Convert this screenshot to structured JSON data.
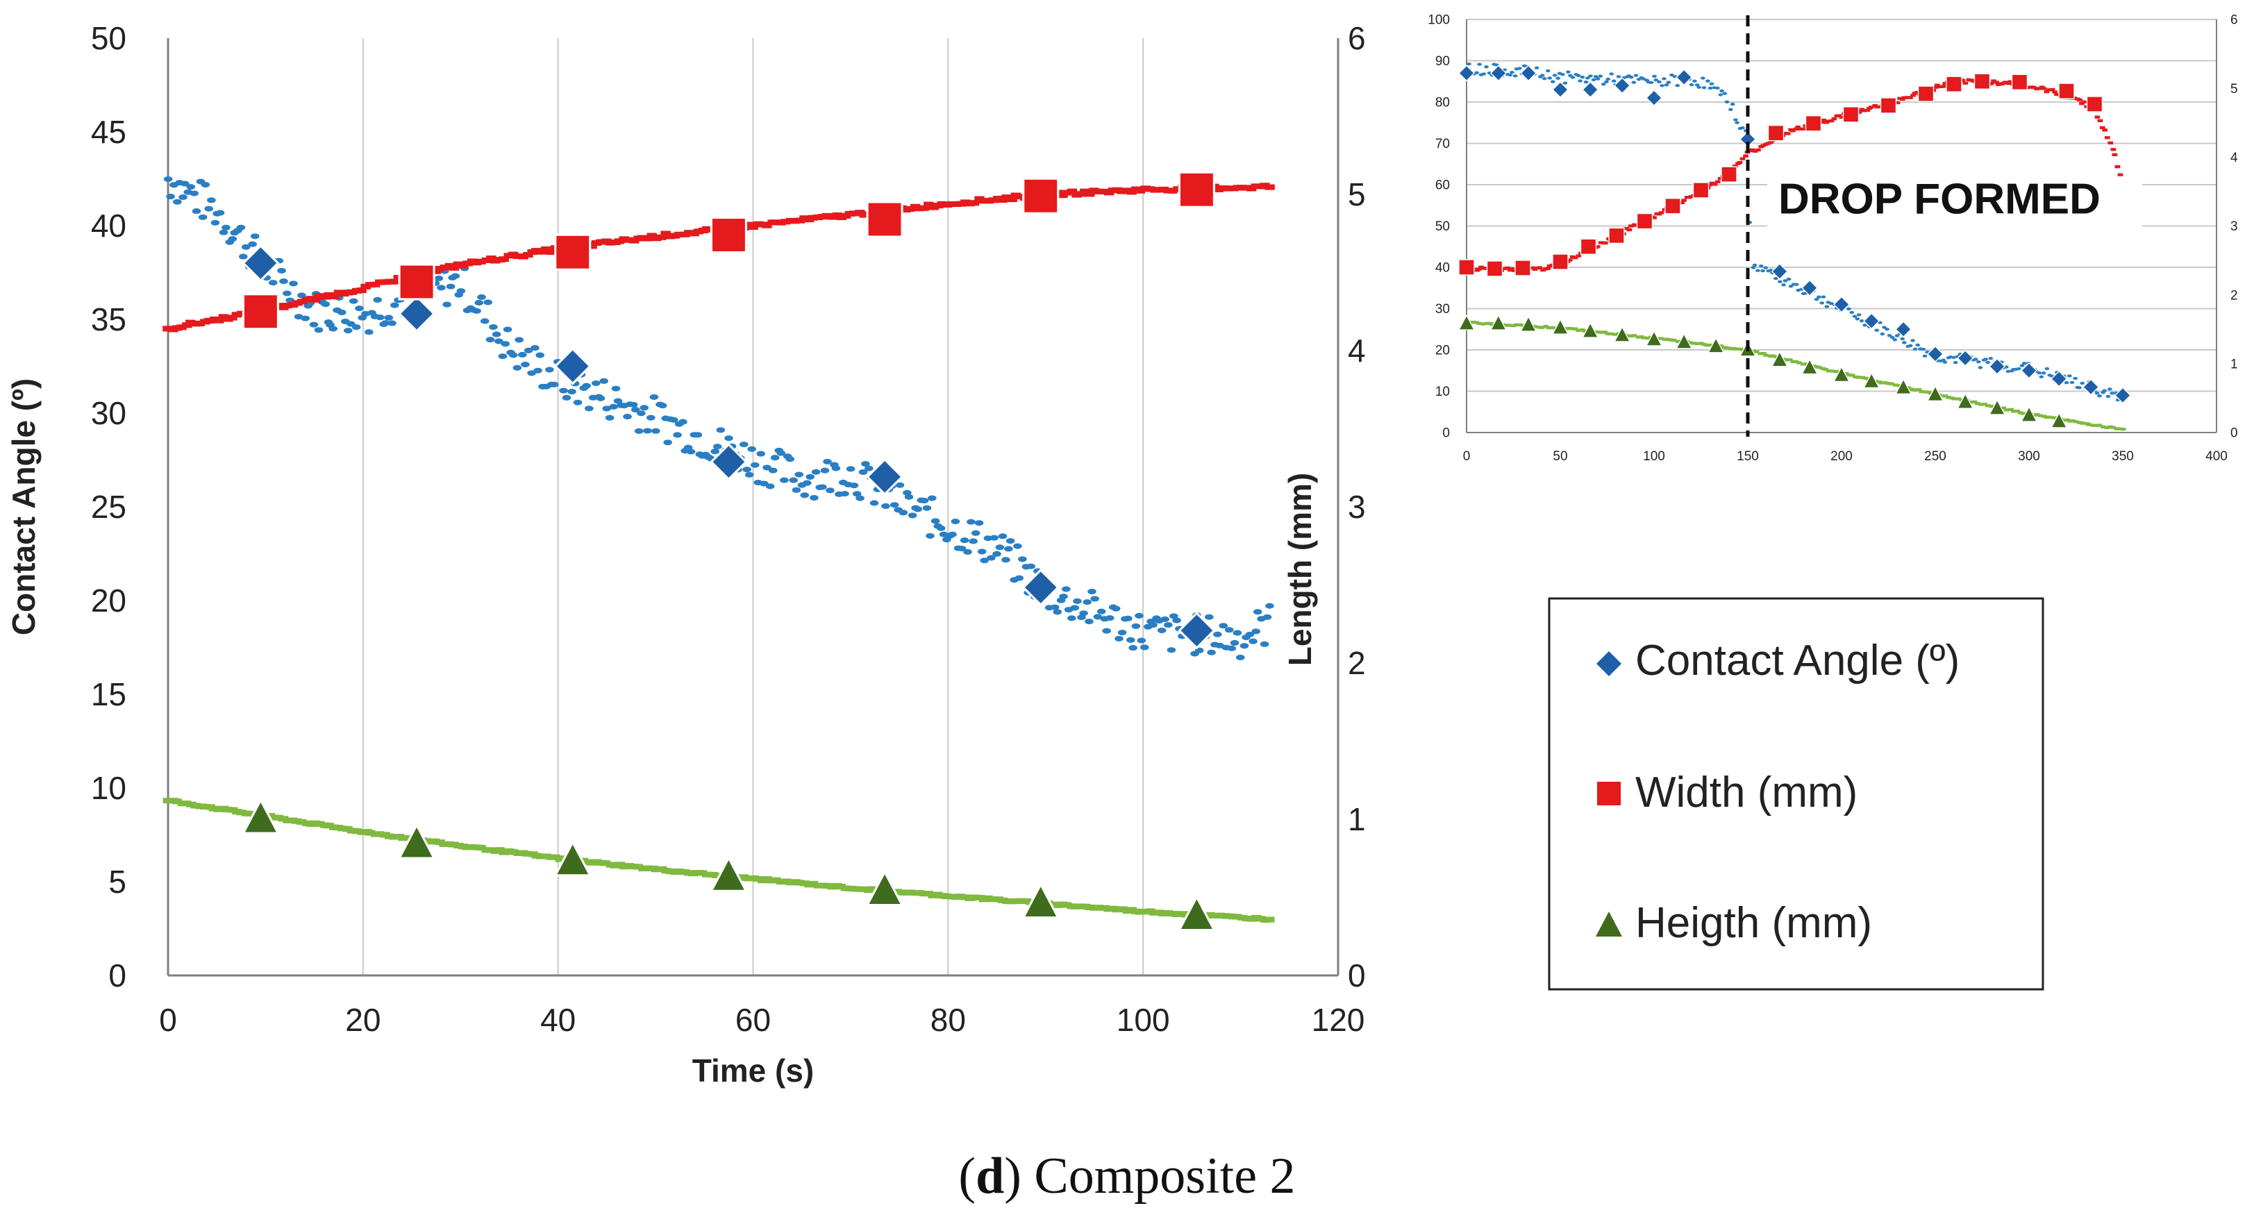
{
  "colors": {
    "contact_angle": "#1f5fa8",
    "contact_angle_dots": "#2a7fc4",
    "width": "#e41a1c",
    "height": "#3f6b1d",
    "height_line": "#7fb93f",
    "grid": "#c8c8c8",
    "axis": "#7f7f7f"
  },
  "chart_data": [
    {
      "id": "main",
      "type": "scatter",
      "xlabel": "Time (s)",
      "ylabel": "Contact Angle (º)",
      "y2label": "Length (mm)",
      "xlim": [
        0,
        120
      ],
      "ylim": [
        0,
        50
      ],
      "y2lim": [
        0,
        6
      ],
      "xticks": [
        "0",
        "20",
        "40",
        "60",
        "80",
        "100",
        "120"
      ],
      "yticks": [
        "0",
        "5",
        "10",
        "15",
        "20",
        "25",
        "30",
        "35",
        "40",
        "45",
        "50"
      ],
      "y2ticks": [
        "0",
        "1",
        "2",
        "3",
        "4",
        "5",
        "6"
      ],
      "grid": "vertical",
      "series": [
        {
          "name": "Contact Angle (º)",
          "axis": "left",
          "marker": "diamond",
          "x": [
            9.5,
            25.5,
            41.5,
            57.5,
            73.5,
            89.5,
            105.5
          ],
          "y": [
            38.0,
            35.3,
            32.5,
            27.4,
            26.6,
            20.7,
            18.4
          ],
          "trend_x": [
            0,
            5,
            10,
            15,
            20,
            25,
            30,
            35,
            40,
            45,
            50,
            55,
            60,
            65,
            70,
            75,
            80,
            85,
            90,
            95,
            100,
            105,
            110,
            113
          ],
          "trend_y": [
            42.5,
            40.8,
            37.8,
            35.5,
            35.3,
            36.2,
            37.0,
            33.5,
            31.8,
            30.8,
            29.8,
            28.6,
            27.5,
            26.5,
            26.8,
            25.2,
            24.0,
            22.8,
            20.5,
            19.4,
            18.3,
            18.2,
            18.0,
            18.8
          ]
        },
        {
          "name": "Width (mm)",
          "axis": "right",
          "marker": "square",
          "x": [
            9.5,
            25.5,
            41.5,
            57.5,
            73.5,
            89.5,
            105.5
          ],
          "y": [
            4.25,
            4.44,
            4.63,
            4.74,
            4.84,
            4.99,
            5.03
          ],
          "trend_x": [
            0,
            10,
            20,
            30,
            40,
            50,
            60,
            70,
            80,
            90,
            100,
            113
          ],
          "trend_y": [
            4.14,
            4.26,
            4.4,
            4.55,
            4.65,
            4.73,
            4.8,
            4.87,
            4.94,
            5.0,
            5.03,
            5.05
          ]
        },
        {
          "name": "Heigth (mm)",
          "axis": "right",
          "marker": "triangle",
          "x": [
            9.5,
            25.5,
            41.5,
            57.5,
            73.5,
            89.5,
            105.5
          ],
          "y": [
            1.0,
            0.84,
            0.73,
            0.63,
            0.54,
            0.46,
            0.38
          ],
          "trend_x": [
            0,
            10,
            20,
            30,
            40,
            50,
            60,
            70,
            80,
            90,
            100,
            113
          ],
          "trend_y": [
            1.12,
            1.02,
            0.92,
            0.83,
            0.75,
            0.68,
            0.62,
            0.56,
            0.51,
            0.46,
            0.41,
            0.36
          ]
        }
      ]
    },
    {
      "id": "inset",
      "type": "scatter",
      "xlim": [
        0,
        400
      ],
      "ylim": [
        0,
        100
      ],
      "y2lim": [
        0,
        6
      ],
      "xticks": [
        "0",
        "50",
        "100",
        "150",
        "200",
        "250",
        "300",
        "350",
        "400"
      ],
      "yticks": [
        "0",
        "10",
        "20",
        "30",
        "40",
        "50",
        "60",
        "70",
        "80",
        "90",
        "100"
      ],
      "y2ticks": [
        "0",
        "1",
        "2",
        "3",
        "4",
        "5",
        "6"
      ],
      "grid": "horizontal",
      "annotation": {
        "text": "DROP FORMED",
        "x": 150
      },
      "series": [
        {
          "name": "Contact Angle (º)",
          "axis": "left",
          "marker": "diamond",
          "x": [
            0,
            17,
            33,
            50,
            66,
            83,
            100,
            116,
            150,
            167,
            183,
            200,
            216,
            233,
            250,
            266,
            283,
            300,
            316,
            333,
            350
          ],
          "y": [
            87,
            87,
            87,
            83,
            83,
            84,
            81,
            86,
            71,
            39,
            35,
            31,
            27,
            25,
            19,
            18,
            16,
            15,
            13,
            11,
            9
          ],
          "trend_x": [
            0,
            30,
            50,
            100,
            120,
            130,
            140,
            150,
            152,
            165,
            200,
            250,
            300,
            350
          ],
          "trend_y": [
            88,
            87.5,
            86,
            85,
            85.5,
            84,
            80,
            71,
            41,
            38,
            30,
            18.5,
            15.5,
            8.5
          ]
        },
        {
          "name": "Width (mm)",
          "axis": "right",
          "marker": "square",
          "x": [
            0,
            15,
            30,
            50,
            65,
            80,
            95,
            110,
            125,
            140,
            165,
            185,
            205,
            225,
            245,
            260,
            275,
            295,
            320,
            335
          ],
          "y": [
            2.4,
            2.38,
            2.39,
            2.48,
            2.7,
            2.86,
            3.07,
            3.29,
            3.52,
            3.75,
            4.35,
            4.49,
            4.62,
            4.75,
            4.92,
            5.06,
            5.1,
            5.09,
            4.96,
            4.77
          ],
          "trend_x": [
            0,
            40,
            55,
            80,
            110,
            140,
            150,
            170,
            200,
            230,
            260,
            290,
            310,
            325,
            335,
            345,
            350
          ],
          "trend_y": [
            2.38,
            2.38,
            2.5,
            2.86,
            3.29,
            3.75,
            4.05,
            4.35,
            4.6,
            4.82,
            5.1,
            5.08,
            4.97,
            4.85,
            4.7,
            4.1,
            3.62
          ]
        },
        {
          "name": "Heigth (mm)",
          "axis": "right",
          "marker": "triangle",
          "x": [
            0,
            17,
            33,
            50,
            66,
            83,
            100,
            116,
            133,
            150,
            167,
            183,
            200,
            216,
            233,
            250,
            266,
            283,
            300,
            316
          ],
          "y": [
            1.58,
            1.58,
            1.56,
            1.52,
            1.47,
            1.41,
            1.35,
            1.31,
            1.25,
            1.2,
            1.05,
            0.94,
            0.83,
            0.74,
            0.65,
            0.55,
            0.44,
            0.35,
            0.25,
            0.16
          ],
          "trend_x": [
            0,
            50,
            100,
            150,
            200,
            250,
            300,
            350
          ],
          "trend_y": [
            1.6,
            1.52,
            1.37,
            1.2,
            0.86,
            0.56,
            0.27,
            0.04
          ]
        }
      ]
    }
  ],
  "legend": {
    "items": [
      {
        "label": "Contact Angle (º)",
        "marker": "diamond"
      },
      {
        "label": "Width (mm)",
        "marker": "square"
      },
      {
        "label": "Heigth (mm)",
        "marker": "triangle"
      }
    ]
  },
  "caption": {
    "letter": "d",
    "rest": ") Composite 2",
    "open_paren": "("
  }
}
